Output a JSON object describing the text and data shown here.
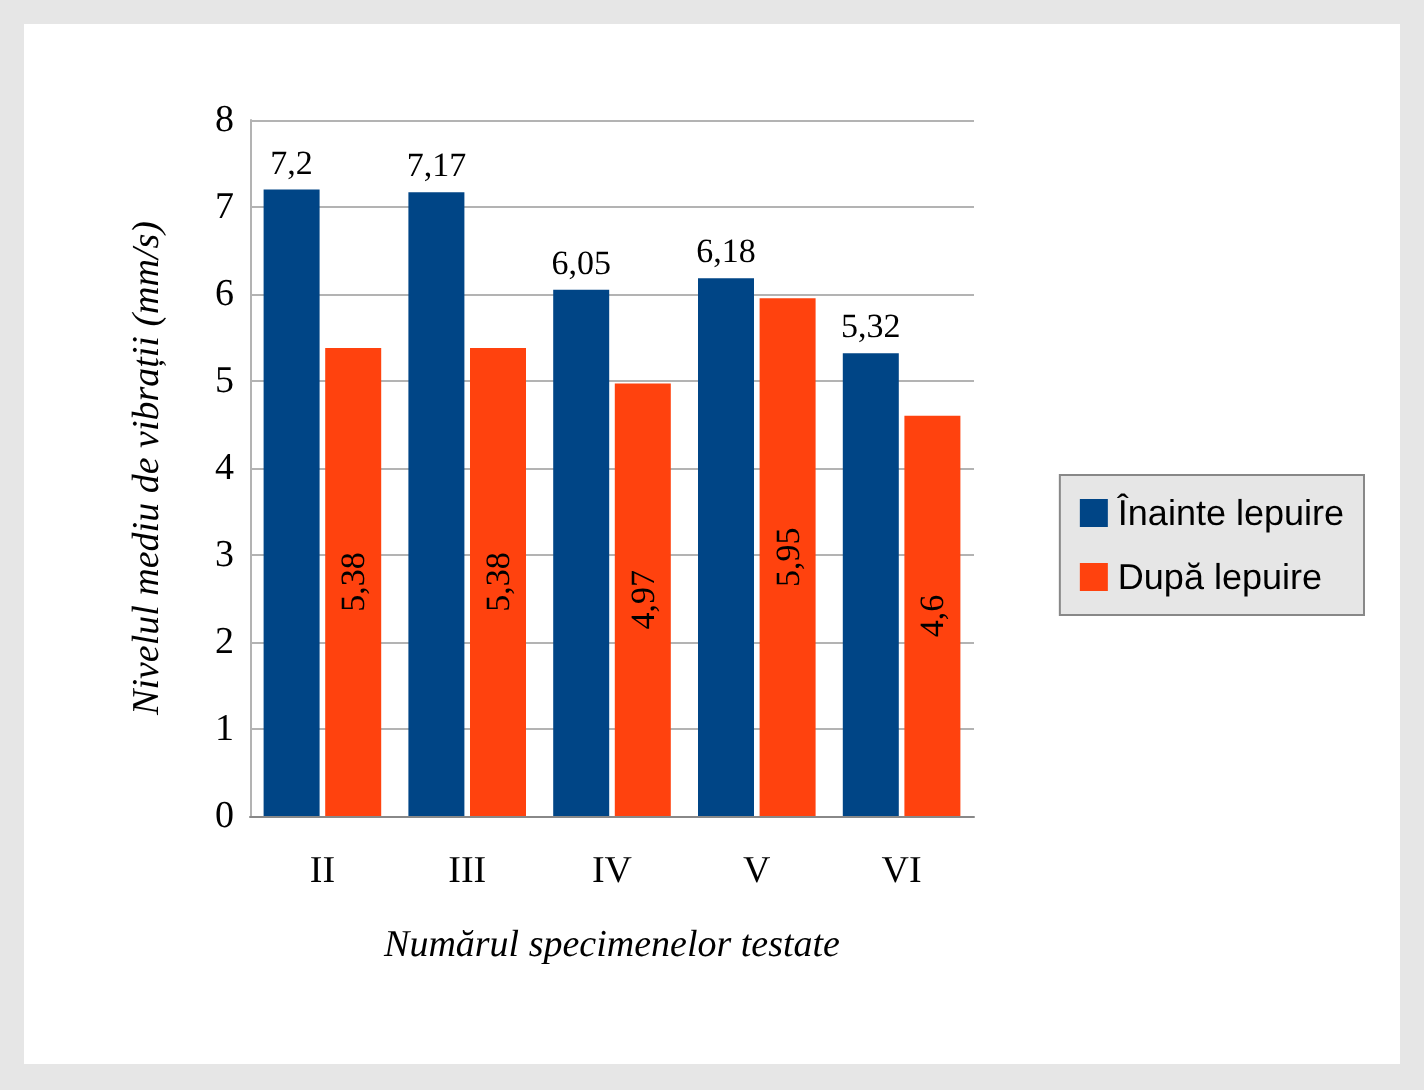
{
  "chart_data": {
    "type": "bar",
    "xlabel": "Numărul specimenelor testate",
    "ylabel": "Nivelul mediu de vibrații (mm/s)",
    "categories": [
      "II",
      "III",
      "IV",
      "V",
      "VI"
    ],
    "series": [
      {
        "name": "Înainte lepuire",
        "color": "#004586",
        "values": [
          7.2,
          7.17,
          6.05,
          6.18,
          5.32
        ],
        "value_labels": [
          "7,2",
          "7,17",
          "6,05",
          "6,18",
          "5,32"
        ]
      },
      {
        "name": "După lepuire",
        "color": "#ff420e",
        "values": [
          5.38,
          5.38,
          4.97,
          5.95,
          4.6
        ],
        "value_labels": [
          "5,38",
          "5,38",
          "4,97",
          "5,95",
          "4,6"
        ]
      }
    ],
    "ylim": [
      0,
      8
    ],
    "yticks": [
      0,
      1,
      2,
      3,
      4,
      5,
      6,
      7,
      8
    ],
    "grid": "y",
    "legend": "right"
  }
}
